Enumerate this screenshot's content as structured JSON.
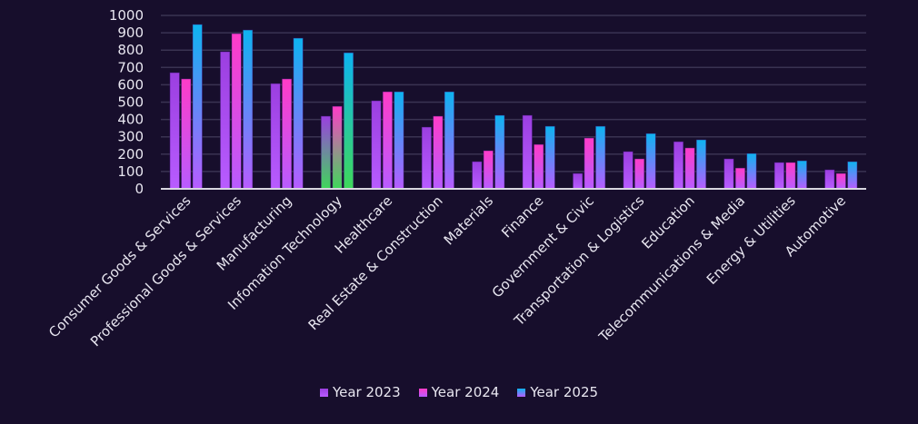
{
  "chart_data": {
    "type": "bar",
    "title": "",
    "xlabel": "",
    "ylabel": "",
    "ylim": [
      0,
      1000
    ],
    "yticks": [
      0,
      100,
      200,
      300,
      400,
      500,
      600,
      700,
      800,
      900,
      1000
    ],
    "grid": true,
    "legend_position": "bottom",
    "categories": [
      "Consumer Goods & Services",
      "Professional Goods & Services",
      "Manufacturing",
      "Infomation Technology",
      "Healthcare",
      "Real Estate & Construction",
      "Materials",
      "Finance",
      "Government & Civic",
      "Transportation & Logistics",
      "Education",
      "Telecommunications & Media",
      "Energy & Utilities",
      "Automotive"
    ],
    "highlighted_category": "Infomation Technology",
    "series": [
      {
        "name": "Year 2023",
        "top_color": "#9b3fe0",
        "bottom_color": "#b85cff",
        "values": [
          670,
          791,
          607,
          419,
          508,
          356,
          157,
          424,
          89,
          215,
          272,
          173,
          152,
          110
        ]
      },
      {
        "name": "Year 2024",
        "top_color": "#ff3cc8",
        "bottom_color": "#b85cff",
        "values": [
          634,
          895,
          634,
          476,
          560,
          419,
          220,
          256,
          293,
          173,
          236,
          120,
          152,
          89
        ]
      },
      {
        "name": "Year 2025",
        "top_color": "#0db4f0",
        "bottom_color": "#b85cff",
        "values": [
          948,
          916,
          869,
          785,
          560,
          560,
          424,
          361,
          361,
          319,
          283,
          204,
          162,
          157
        ]
      }
    ],
    "highlight_bottom_color": "#3fd85a",
    "colors": {
      "background": "#170e2c",
      "grid": "#3a3352",
      "axis": "#d8d6e0",
      "text": "#e8e6f0"
    }
  }
}
